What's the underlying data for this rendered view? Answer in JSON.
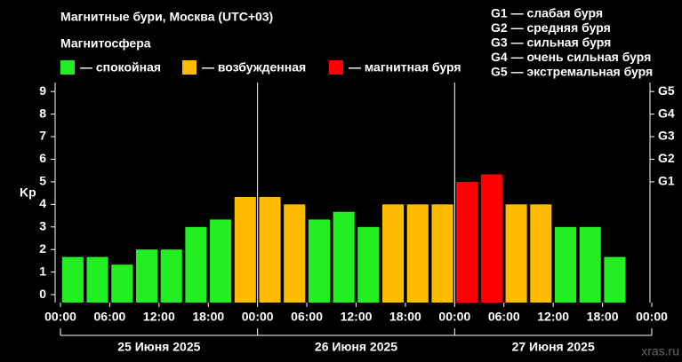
{
  "chart_data": {
    "type": "bar",
    "title": "Магнитные бури, Москва (UTC+03)",
    "legend_title": "Магнитосфера",
    "legend": [
      {
        "name": "— спокойная",
        "color": "#22ee22"
      },
      {
        "name": "— возбужденная",
        "color": "#ffbb00"
      },
      {
        "name": "— магнитная буря",
        "color": "#ff0000"
      }
    ],
    "storm_scale": [
      "G1 — слабая буря",
      "G2 — средняя буря",
      "G3 — сильная буря",
      "G4 — очень сильная буря",
      "G5 — экстремальная буря"
    ],
    "ylabel": "Kp",
    "watermark": "xras.ru",
    "days": [
      "25 Июня 2025",
      "26 Июня 2025",
      "27 Июня 2025"
    ],
    "x": [
      0,
      3,
      6,
      9,
      12,
      15,
      18,
      21,
      24,
      27,
      30,
      33,
      36,
      39,
      42,
      45,
      48,
      51,
      54,
      57,
      60,
      63,
      66
    ],
    "values": [
      1.67,
      1.67,
      1.33,
      2,
      2,
      3,
      3.33,
      4.33,
      4.33,
      4,
      3.33,
      3.67,
      3,
      4,
      4,
      4,
      5,
      5.33,
      4,
      4,
      3,
      3,
      1.67
    ],
    "colors": [
      "#22ee22",
      "#22ee22",
      "#22ee22",
      "#22ee22",
      "#22ee22",
      "#22ee22",
      "#22ee22",
      "#ffbb00",
      "#ffbb00",
      "#ffbb00",
      "#22ee22",
      "#22ee22",
      "#22ee22",
      "#ffbb00",
      "#ffbb00",
      "#ffbb00",
      "#ff0000",
      "#ff0000",
      "#ffbb00",
      "#ffbb00",
      "#22ee22",
      "#22ee22",
      "#22ee22"
    ],
    "bar_width_hours": 3,
    "xlim": [
      0,
      72
    ],
    "xticks": [
      {
        "value": 0,
        "label": "00:00"
      },
      {
        "value": 6,
        "label": "06:00"
      },
      {
        "value": 12,
        "label": "12:00"
      },
      {
        "value": 18,
        "label": "18:00"
      },
      {
        "value": 24,
        "label": "00:00"
      },
      {
        "value": 30,
        "label": "06:00"
      },
      {
        "value": 36,
        "label": "12:00"
      },
      {
        "value": 42,
        "label": "18:00"
      },
      {
        "value": 48,
        "label": "00:00"
      },
      {
        "value": 54,
        "label": "06:00"
      },
      {
        "value": 60,
        "label": "12:00"
      },
      {
        "value": 66,
        "label": "18:00"
      },
      {
        "value": 72,
        "label": "00:00"
      }
    ],
    "ylim": [
      -0.35,
      9.4
    ],
    "yticks": [
      0,
      1,
      2,
      3,
      4,
      5,
      6,
      7,
      8,
      9
    ],
    "y2lim": [
      -0.35,
      9.4
    ],
    "y2ticks": [
      {
        "value": 5,
        "label": "G1"
      },
      {
        "value": 6,
        "label": "G2"
      },
      {
        "value": 7,
        "label": "G3"
      },
      {
        "value": 8,
        "label": "G4"
      },
      {
        "value": 9,
        "label": "G5"
      }
    ]
  }
}
